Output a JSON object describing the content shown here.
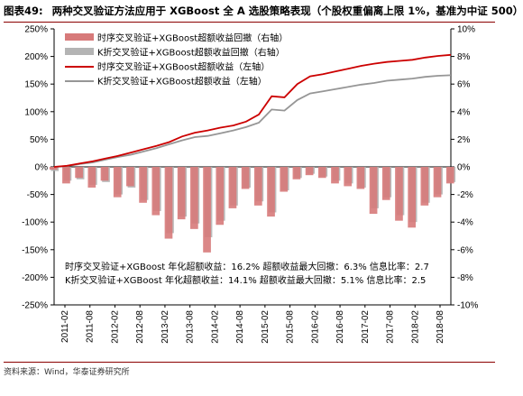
{
  "title": {
    "label": "图表49:",
    "text": "两种交叉验证方法应用于 XGBoost 全 A 选股策略表现（个股权重偏离上限 1%，基准为中证 500）"
  },
  "source": "资料来源：Wind，华泰证券研究所",
  "colors": {
    "ts_line": "#cc0000",
    "kf_line": "#969696",
    "ts_dd": "#d77a7a",
    "kf_dd": "#b4b4b4",
    "border": "#8b0000"
  },
  "chart_data": {
    "type": "line",
    "x": [
      "2011-02",
      "2011-05",
      "2011-08",
      "2011-11",
      "2012-02",
      "2012-05",
      "2012-08",
      "2012-11",
      "2013-02",
      "2013-05",
      "2013-08",
      "2013-11",
      "2014-02",
      "2014-05",
      "2014-08",
      "2014-11",
      "2015-02",
      "2015-05",
      "2015-08",
      "2015-11",
      "2016-02",
      "2016-05",
      "2016-08",
      "2016-11",
      "2017-02",
      "2017-05",
      "2017-08",
      "2017-11",
      "2018-02",
      "2018-05",
      "2018-08",
      "2018-10"
    ],
    "x_tick_labels": [
      "2011-02",
      "2011-08",
      "2012-02",
      "2012-08",
      "2013-02",
      "2013-08",
      "2014-02",
      "2014-08",
      "2015-02",
      "2015-08",
      "2016-02",
      "2016-08",
      "2017-02",
      "2017-08",
      "2018-02",
      "2018-08"
    ],
    "left_axis": {
      "ylim": [
        -250,
        250
      ],
      "ticks": [
        "-250%",
        "-200%",
        "-150%",
        "-100%",
        "-50%",
        "0%",
        "50%",
        "100%",
        "150%",
        "200%",
        "250%"
      ]
    },
    "right_axis": {
      "ylim": [
        -10,
        10
      ],
      "ticks": [
        "-10%",
        "-8%",
        "-6%",
        "-4%",
        "-2%",
        "0%",
        "2%",
        "4%",
        "6%",
        "8%",
        "10%"
      ]
    },
    "legend": {
      "placement": "top-left",
      "items": [
        {
          "label": "时序交叉验证+XGBoost超额收益回撤（右轴）",
          "kind": "bar",
          "color": "#d77a7a"
        },
        {
          "label": "K折交叉验证+XGBoost超额收益回撤（右轴）",
          "kind": "bar",
          "color": "#b4b4b4"
        },
        {
          "label": "时序交叉验证+XGBoost超额收益（左轴）",
          "kind": "line",
          "color": "#cc0000"
        },
        {
          "label": "K折交叉验证+XGBoost超额收益（左轴）",
          "kind": "line",
          "color": "#969696"
        }
      ]
    },
    "series": [
      {
        "name": "时序交叉验证+XGBoost超额收益（左轴）",
        "axis": "left",
        "values": [
          0,
          2,
          6,
          10,
          15,
          20,
          26,
          32,
          38,
          45,
          55,
          62,
          66,
          71,
          75,
          82,
          95,
          128,
          126,
          150,
          164,
          168,
          173,
          178,
          183,
          187,
          190,
          192,
          194,
          198,
          201,
          203
        ]
      },
      {
        "name": "K折交叉验证+XGBoost超额收益（左轴）",
        "axis": "left",
        "values": [
          0,
          1,
          5,
          8,
          13,
          18,
          22,
          28,
          34,
          41,
          48,
          54,
          56,
          61,
          66,
          72,
          80,
          104,
          102,
          121,
          133,
          137,
          141,
          145,
          149,
          152,
          156,
          158,
          160,
          163,
          165,
          166
        ]
      },
      {
        "name": "时序交叉验证+XGBoost超额收益回撤（右轴）",
        "axis": "right",
        "values": [
          -0.2,
          -1.2,
          -0.8,
          -1.5,
          -1.0,
          -2.2,
          -1.4,
          -2.6,
          -3.5,
          -5.2,
          -3.8,
          -4.5,
          -6.2,
          -4.2,
          -3.0,
          -1.6,
          -2.8,
          -3.6,
          -1.8,
          -0.9,
          -0.6,
          -0.8,
          -1.2,
          -1.4,
          -1.6,
          -3.4,
          -2.4,
          -3.9,
          -4.4,
          -2.8,
          -2.2,
          -1.2
        ]
      },
      {
        "name": "K折交叉验证+XGBoost超额收益回撤（右轴）",
        "axis": "right",
        "values": [
          -0.3,
          -1.0,
          -0.9,
          -1.3,
          -1.1,
          -2.0,
          -1.5,
          -2.4,
          -3.2,
          -4.8,
          -3.6,
          -4.1,
          -5.1,
          -3.9,
          -2.8,
          -1.5,
          -2.5,
          -3.3,
          -1.7,
          -0.8,
          -0.5,
          -0.7,
          -1.0,
          -1.2,
          -1.5,
          -3.0,
          -2.2,
          -3.5,
          -4.0,
          -2.6,
          -2.0,
          -1.1
        ]
      }
    ],
    "annotations": [
      "时序交叉验证+XGBoost  年化超额收益：16.2%  超额收益最大回撤：6.3%  信息比率：2.7",
      "K折交叉验证+XGBoost  年化超额收益：14.1%  超额收益最大回撤：5.1%  信息比率：2.5"
    ]
  }
}
